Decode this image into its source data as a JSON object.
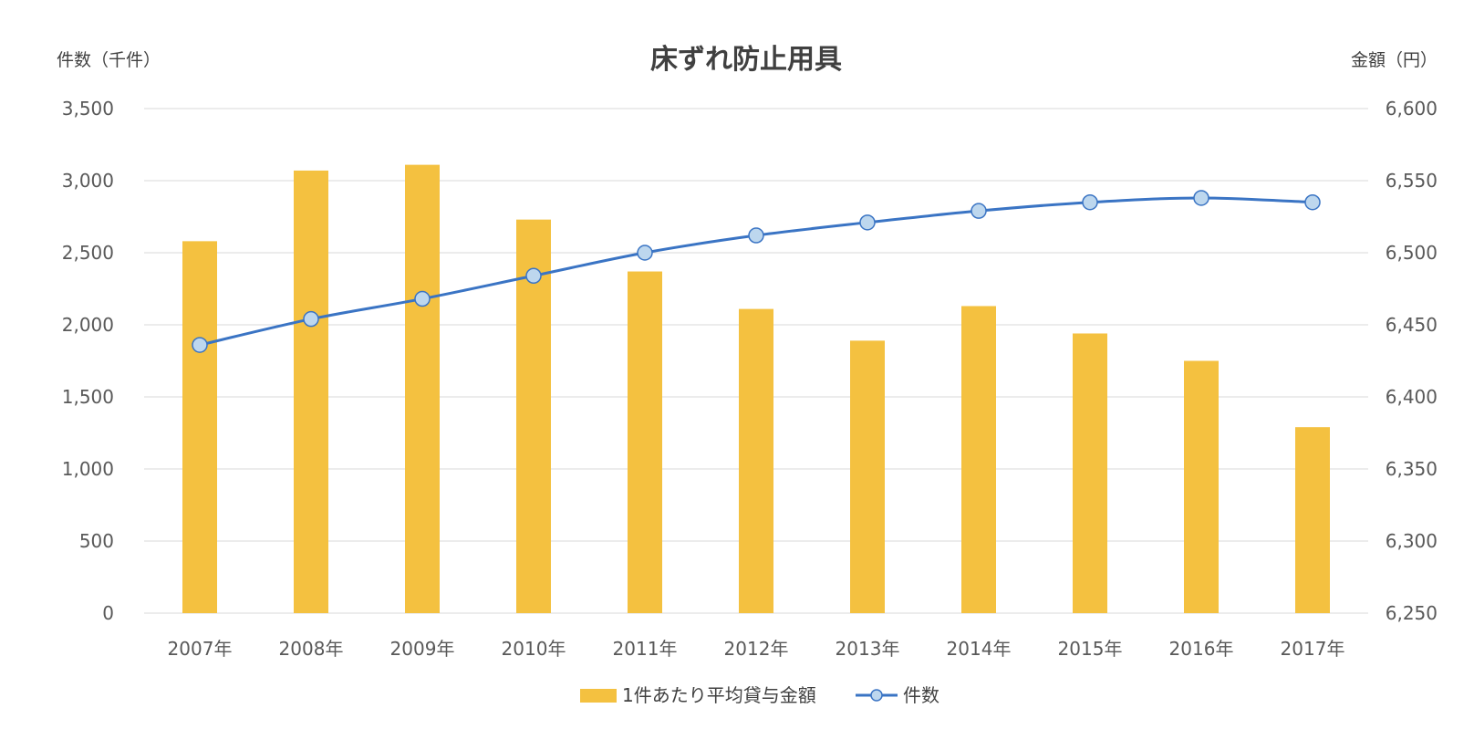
{
  "chart_data": {
    "type": "bar",
    "title": "床ずれ防止用具",
    "y_left_label": "件数（千件）",
    "y_right_label": "金額（円）",
    "categories": [
      "2007年",
      "2008年",
      "2009年",
      "2010年",
      "2011年",
      "2012年",
      "2013年",
      "2014年",
      "2015年",
      "2016年",
      "2017年"
    ],
    "y_left": {
      "min": 0,
      "max": 3500,
      "ticks": [
        0,
        500,
        1000,
        1500,
        2000,
        2500,
        3000,
        3500
      ],
      "tick_labels": [
        "0",
        "500",
        "1,000",
        "1,500",
        "2,000",
        "2,500",
        "3,000",
        "3,500"
      ]
    },
    "y_right": {
      "min": 6250,
      "max": 6600,
      "ticks": [
        6250,
        6300,
        6350,
        6400,
        6450,
        6500,
        6550,
        6600
      ],
      "tick_labels": [
        "6,250",
        "6,300",
        "6,350",
        "6,400",
        "6,450",
        "6,500",
        "6,550",
        "6,600"
      ]
    },
    "grid": true,
    "legend_position": "bottom",
    "series": [
      {
        "name": "1件あたり平均貸与金額",
        "type": "bar",
        "axis": "right",
        "color": "#f4c140",
        "values": [
          6508,
          6557,
          6561,
          6523,
          6487,
          6461,
          6439,
          6463,
          6444,
          6425,
          6379
        ]
      },
      {
        "name": "件数",
        "type": "line",
        "axis": "left",
        "color": "#3a74c4",
        "marker_fill": "#bdd7ee",
        "values": [
          1860,
          2040,
          2180,
          2340,
          2500,
          2620,
          2710,
          2790,
          2850,
          2880,
          2850
        ]
      }
    ]
  }
}
